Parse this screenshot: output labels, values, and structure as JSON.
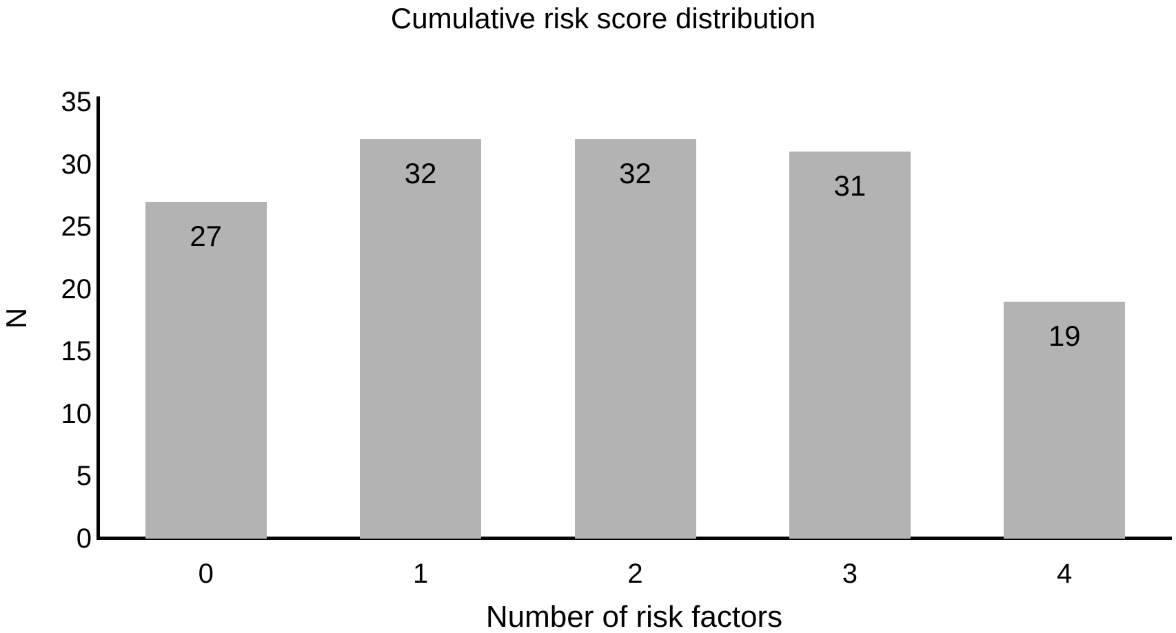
{
  "chart_data": {
    "type": "bar",
    "title": "Cumulative risk score distribution",
    "xlabel": "Number of risk factors",
    "ylabel": "N",
    "categories": [
      "0",
      "1",
      "2",
      "3",
      "4"
    ],
    "values": [
      27,
      32,
      32,
      31,
      19
    ],
    "data_labels": [
      "27",
      "32",
      "32",
      "31",
      "19"
    ],
    "data_label_position": "inside-end",
    "ylim": [
      0,
      35
    ],
    "yticks": [
      0,
      5,
      10,
      15,
      20,
      25,
      30,
      35
    ],
    "grid": "off",
    "legend": "none",
    "bar_color": "#b3b3b3",
    "axis_color": "#000000",
    "text_color": "#000000",
    "background_color": "#ffffff"
  }
}
